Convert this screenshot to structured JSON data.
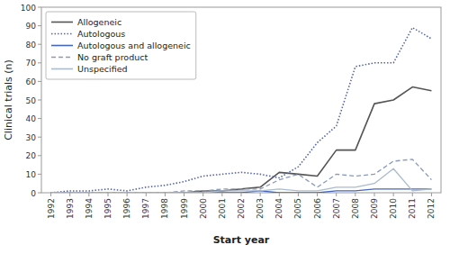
{
  "chart_data": {
    "type": "line",
    "x_label": "Start year",
    "y_label": "Clinical trials (n)",
    "x": [
      1992,
      1993,
      1994,
      1995,
      1996,
      1997,
      1998,
      1999,
      2000,
      2001,
      2002,
      2003,
      2004,
      2005,
      2006,
      2007,
      2008,
      2009,
      2010,
      2011,
      2012
    ],
    "series": [
      {
        "name": "Allogeneic",
        "color": "#555555",
        "line_style": "solid",
        "values": [
          0,
          0,
          0,
          0,
          0,
          0,
          0,
          0,
          1,
          1,
          2,
          3,
          11,
          10,
          9,
          23,
          23,
          48,
          50,
          57,
          55
        ]
      },
      {
        "name": "Autologous",
        "color": "#5566aa",
        "line_style": "dotted",
        "values": [
          0,
          1,
          1,
          2,
          1,
          3,
          4,
          6,
          9,
          10,
          11,
          10,
          8,
          14,
          27,
          36,
          68,
          70,
          70,
          89,
          83
        ]
      },
      {
        "name": "Autologous and allogeneic",
        "color": "#4466bb",
        "line_style": "solid",
        "values": [
          0,
          0,
          0,
          0,
          0,
          0,
          0,
          0,
          0,
          0,
          0,
          1,
          0,
          0,
          0,
          1,
          1,
          2,
          2,
          2,
          2
        ]
      },
      {
        "name": "No graft product",
        "color": "#8899bb",
        "line_style": "dashed",
        "values": [
          0,
          0,
          0,
          0,
          0,
          0,
          0,
          1,
          1,
          2,
          2,
          2,
          7,
          10,
          3,
          10,
          9,
          10,
          17,
          18,
          7
        ]
      },
      {
        "name": "Unspecified",
        "color": "#aabbcc",
        "line_style": "solid",
        "values": [
          0,
          0,
          0,
          0,
          0,
          0,
          0,
          0,
          0,
          1,
          1,
          1,
          2,
          1,
          1,
          3,
          3,
          5,
          13,
          1,
          2
        ]
      }
    ],
    "xlim": [
      1991.5,
      2012.5
    ],
    "xticks": [
      1992,
      1993,
      1994,
      1995,
      1996,
      1997,
      1998,
      1999,
      2000,
      2001,
      2002,
      2003,
      2004,
      2005,
      2006,
      2007,
      2008,
      2009,
      2010,
      2011,
      2012
    ],
    "ylim": [
      0,
      100
    ],
    "yticks": [
      0,
      10,
      20,
      30,
      40,
      50,
      60,
      70,
      80,
      90,
      100
    ],
    "grid": false,
    "legend": "upper left"
  }
}
